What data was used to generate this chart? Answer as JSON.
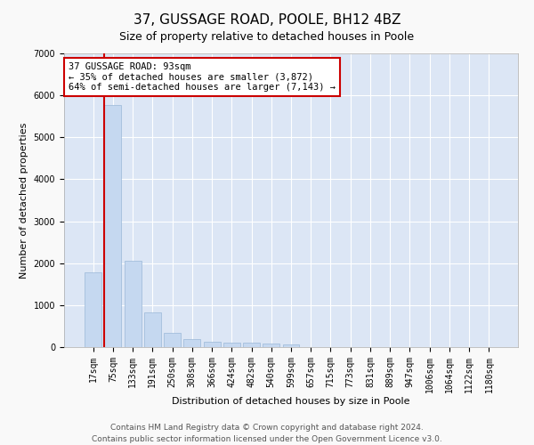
{
  "title": "37, GUSSAGE ROAD, POOLE, BH12 4BZ",
  "subtitle": "Size of property relative to detached houses in Poole",
  "xlabel": "Distribution of detached houses by size in Poole",
  "ylabel": "Number of detached properties",
  "bar_labels": [
    "17sqm",
    "75sqm",
    "133sqm",
    "191sqm",
    "250sqm",
    "308sqm",
    "366sqm",
    "424sqm",
    "482sqm",
    "540sqm",
    "599sqm",
    "657sqm",
    "715sqm",
    "773sqm",
    "831sqm",
    "889sqm",
    "947sqm",
    "1006sqm",
    "1064sqm",
    "1122sqm",
    "1180sqm"
  ],
  "bar_values": [
    1780,
    5780,
    2060,
    820,
    340,
    195,
    120,
    115,
    100,
    85,
    70,
    0,
    0,
    0,
    0,
    0,
    0,
    0,
    0,
    0,
    0
  ],
  "bar_color": "#c5d8f0",
  "bar_edge_color": "#9ab8d8",
  "vline_color": "#cc0000",
  "vline_x_index": 1,
  "annotation_text": "37 GUSSAGE ROAD: 93sqm\n← 35% of detached houses are smaller (3,872)\n64% of semi-detached houses are larger (7,143) →",
  "annotation_box_facecolor": "#ffffff",
  "annotation_box_edgecolor": "#cc0000",
  "ylim": [
    0,
    7000
  ],
  "yticks": [
    0,
    1000,
    2000,
    3000,
    4000,
    5000,
    6000,
    7000
  ],
  "plot_bg_color": "#dce6f5",
  "grid_color": "#ffffff",
  "footer_line1": "Contains HM Land Registry data © Crown copyright and database right 2024.",
  "footer_line2": "Contains public sector information licensed under the Open Government Licence v3.0.",
  "fig_bg_color": "#f9f9f9",
  "title_fontsize": 11,
  "subtitle_fontsize": 9,
  "ylabel_fontsize": 8,
  "xlabel_fontsize": 8,
  "tick_fontsize": 7,
  "annotation_fontsize": 7.5,
  "footer_fontsize": 6.5
}
